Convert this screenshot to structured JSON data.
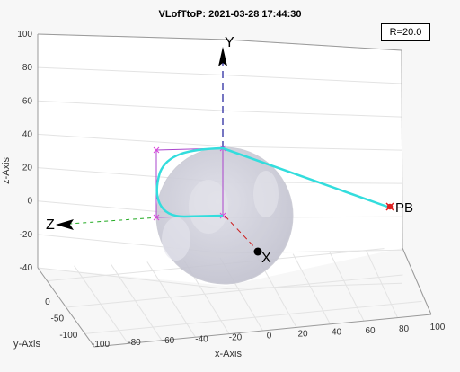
{
  "figure": {
    "title": "VLofTtoP: 2021-03-28 17:44:30",
    "legend": "R=20.0",
    "background": "#f7f7f7",
    "axes_bg": "#ffffff"
  },
  "axes": {
    "x_label": "x-Axis",
    "y_label": "y-Axis",
    "z_label": "z-Axis",
    "x_ticks": [
      "-100",
      "-80",
      "-60",
      "-40",
      "-20",
      "0",
      "20",
      "40",
      "60",
      "80",
      "100"
    ],
    "y_ticks": [
      "0",
      "-50",
      "-100"
    ],
    "z_ticks": [
      "100",
      "80",
      "60",
      "40",
      "20",
      "0",
      "-20",
      "-40"
    ]
  },
  "scene": {
    "axis_labels": {
      "x": "X",
      "y": "Y",
      "z": "Z"
    },
    "point_label": "PB",
    "colors": {
      "sphere": "#c9c9d6",
      "path": "#33dddd",
      "box": "#aa44cc",
      "x_axis": "#cc2222",
      "y_axis": "#1a1a99",
      "z_axis": "#22aa22"
    }
  }
}
